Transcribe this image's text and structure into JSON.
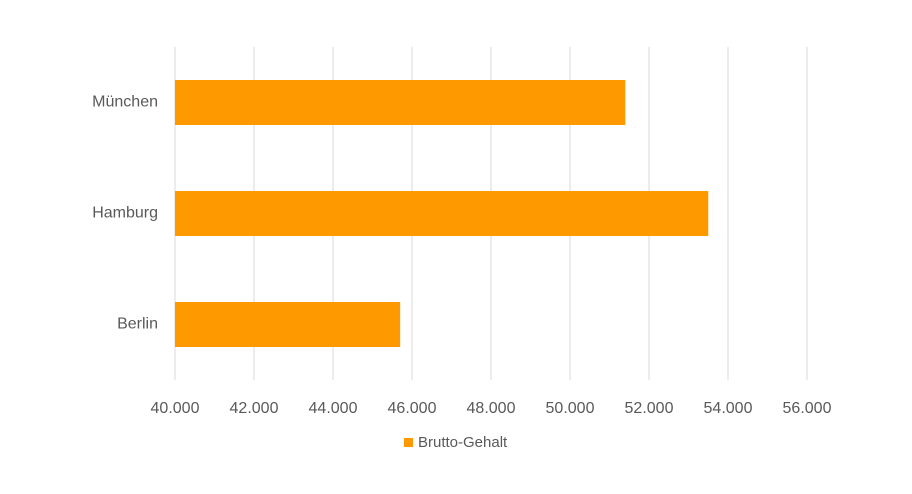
{
  "chart_data": {
    "type": "bar",
    "orientation": "horizontal",
    "categories": [
      "Berlin",
      "Hamburg",
      "München"
    ],
    "series": [
      {
        "name": "Brutto-Gehalt",
        "color": "#ff9900",
        "values": [
          45700,
          53500,
          51400
        ]
      }
    ],
    "xlim": [
      40000,
      56000
    ],
    "xticks": [
      {
        "value": 40000,
        "label": "40.000"
      },
      {
        "value": 42000,
        "label": "42.000"
      },
      {
        "value": 44000,
        "label": "44.000"
      },
      {
        "value": 46000,
        "label": "46.000"
      },
      {
        "value": 48000,
        "label": "48.000"
      },
      {
        "value": 50000,
        "label": "50.000"
      },
      {
        "value": 52000,
        "label": "52.000"
      },
      {
        "value": 54000,
        "label": "54.000"
      },
      {
        "value": 56000,
        "label": "56.000"
      }
    ],
    "grid": true,
    "legend": "bottom"
  }
}
